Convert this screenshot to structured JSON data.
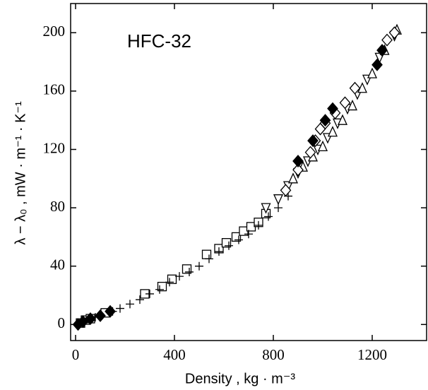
{
  "chart_data": {
    "type": "scatter",
    "title": "HFC-32",
    "xlabel": "Density , kg · m⁻³",
    "ylabel": "λ − λ₀ , mW · m⁻¹ · K⁻¹",
    "xlim": [
      -20,
      1420
    ],
    "ylim": [
      -11,
      220
    ],
    "xticks": [
      0,
      400,
      800,
      1200
    ],
    "yticks": [
      0,
      40,
      80,
      120,
      160,
      200
    ],
    "grid": false,
    "series": [
      {
        "marker": "square",
        "color": "#000000",
        "x": [
          20,
          40,
          60,
          120,
          280,
          350,
          390,
          450,
          530,
          580,
          610,
          650,
          680,
          710,
          740,
          770
        ],
        "values": [
          1,
          3,
          4,
          8,
          21,
          26,
          31,
          38,
          48,
          52,
          56,
          60,
          64,
          67,
          70,
          76
        ]
      },
      {
        "marker": "plus",
        "color": "#000000",
        "x": [
          30,
          80,
          150,
          180,
          220,
          260,
          300,
          340,
          380,
          420,
          460,
          500,
          540,
          580,
          620,
          660,
          700,
          740,
          780,
          820,
          860
        ],
        "values": [
          2,
          5,
          9,
          11,
          14,
          17,
          21,
          24,
          29,
          33,
          36,
          40,
          45,
          50,
          54,
          58,
          62,
          68,
          74,
          80,
          88
        ]
      },
      {
        "marker": "triangle-down",
        "color": "#000000",
        "x": [
          770,
          820,
          860,
          900,
          940,
          980,
          1020,
          1060,
          1100,
          1140,
          1180,
          1230,
          1290
        ],
        "values": [
          80,
          86,
          95,
          104,
          112,
          120,
          128,
          138,
          148,
          158,
          168,
          183,
          198
        ]
      },
      {
        "marker": "triangle-up",
        "color": "#000000",
        "x": [
          880,
          920,
          960,
          1000,
          1040,
          1080,
          1120,
          1160,
          1200,
          1250,
          1300
        ],
        "values": [
          100,
          108,
          115,
          122,
          132,
          140,
          150,
          162,
          172,
          188,
          202
        ]
      },
      {
        "marker": "diamond",
        "color": "#000000",
        "x": [
          850,
          900,
          950,
          970,
          990,
          1010,
          1050,
          1090,
          1130,
          1260,
          1290
        ],
        "values": [
          92,
          106,
          118,
          126,
          134,
          138,
          145,
          152,
          162,
          195,
          200
        ]
      },
      {
        "marker": "diamond-filled",
        "color": "#000000",
        "x": [
          10,
          30,
          60,
          100,
          140,
          900,
          960,
          1010,
          1040,
          1220,
          1240
        ],
        "values": [
          0,
          2,
          4,
          6,
          9,
          112,
          126,
          140,
          148,
          178,
          188
        ]
      }
    ]
  }
}
